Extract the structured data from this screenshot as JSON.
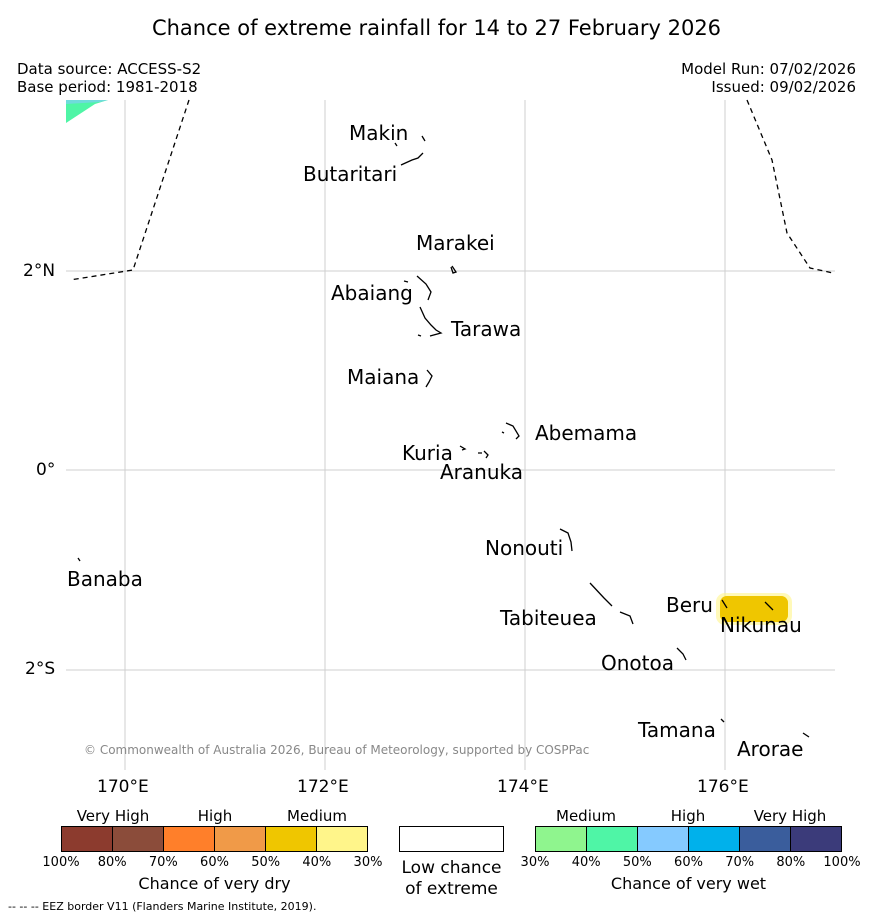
{
  "title": "Chance of extreme rainfall for 14 to 27 February 2026",
  "meta": {
    "data_source": "Data source: ACCESS-S2",
    "base_period": "Base period: 1981-2018",
    "model_run": "Model Run: 07/02/2026",
    "issued": "Issued: 09/02/2026"
  },
  "axes": {
    "lat_labels": [
      "2°N",
      "0°",
      "2°S"
    ],
    "lon_labels": [
      "170°E",
      "172°E",
      "174°E",
      "176°E"
    ]
  },
  "places": [
    {
      "name": "Makin"
    },
    {
      "name": "Butaritari"
    },
    {
      "name": "Marakei"
    },
    {
      "name": "Abaiang"
    },
    {
      "name": "Tarawa"
    },
    {
      "name": "Maiana"
    },
    {
      "name": "Abemama"
    },
    {
      "name": "Kuria"
    },
    {
      "name": "Aranuka"
    },
    {
      "name": "Nonouti"
    },
    {
      "name": "Banaba"
    },
    {
      "name": "Beru"
    },
    {
      "name": "Tabiteuea"
    },
    {
      "name": "Nikunau"
    },
    {
      "name": "Onotoa"
    },
    {
      "name": "Tamana"
    },
    {
      "name": "Arorae"
    }
  ],
  "copyright": "© Commonwealth of Australia 2026, Bureau of Meteorology, supported by COSPPac",
  "colorbars": {
    "dry": {
      "title": "Chance of very dry",
      "categories": [
        "Very High",
        "High",
        "Medium"
      ],
      "colors": [
        "#8c3b2e",
        "#8b4c3a",
        "#ff7f2a",
        "#f09a48",
        "#efc600",
        "#fff58a"
      ],
      "ticks": [
        "100%",
        "80%",
        "70%",
        "60%",
        "50%",
        "40%",
        "30%"
      ]
    },
    "low": {
      "title_line1": "Low chance",
      "title_line2": "of extreme",
      "color": "#ffffff"
    },
    "wet": {
      "title": "Chance of very wet",
      "categories": [
        "Medium",
        "High",
        "Very High"
      ],
      "colors": [
        "#8ff58e",
        "#4ff5a6",
        "#85caff",
        "#00b1eb",
        "#3a5d9c",
        "#3b3b7a"
      ],
      "ticks": [
        "30%",
        "40%",
        "50%",
        "60%",
        "70%",
        "80%",
        "100%"
      ]
    }
  },
  "footer": "--  --  -- EEZ border V11 (Flanders Marine Institute, 2019).",
  "colors": {
    "medium_dry_highlight": "#efc600",
    "wet_corner": "#4ff5a6"
  }
}
